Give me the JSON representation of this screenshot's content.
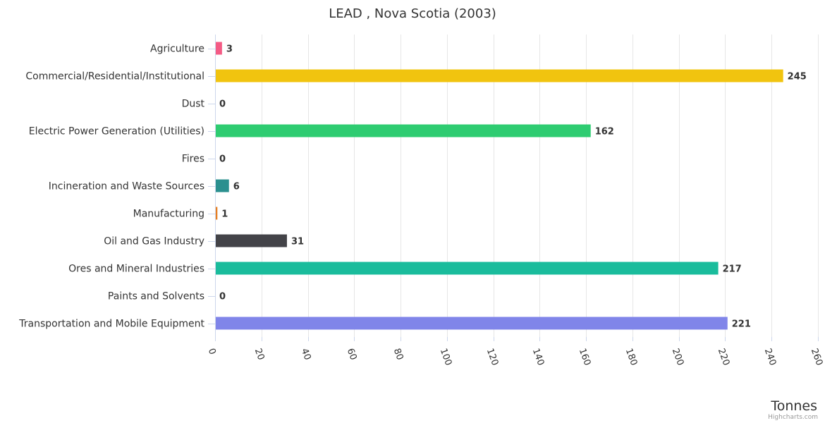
{
  "chart_data": {
    "type": "bar",
    "orientation": "horizontal",
    "title": "LEAD , Nova Scotia (2003)",
    "xlabel": "",
    "ylabel": "Tonnes",
    "categories": [
      "Agriculture",
      "Commercial/Residential/Institutional",
      "Dust",
      "Electric Power Generation (Utilities)",
      "Fires",
      "Incineration and Waste Sources",
      "Manufacturing",
      "Oil and Gas Industry",
      "Ores and Mineral Industries",
      "Paints and Solvents",
      "Transportation and Mobile Equipment"
    ],
    "values": [
      3,
      245,
      0,
      162,
      0,
      6,
      1,
      31,
      217,
      0,
      221
    ],
    "data_labels": [
      "3",
      "245",
      "0",
      "162",
      "0",
      "6",
      "1",
      "31",
      "217",
      "0",
      "221"
    ],
    "colors": [
      "#f45b85",
      "#f1c40f",
      "#2f7ed8",
      "#2ecc71",
      "#8e44ad",
      "#2b908f",
      "#e67e22",
      "#434348",
      "#1abc9c",
      "#9b59b6",
      "#8085e9"
    ],
    "value_axis": {
      "min": 0,
      "max": 260,
      "tick_interval": 20,
      "ticks": [
        "0",
        "20",
        "40",
        "60",
        "80",
        "100",
        "120",
        "140",
        "160",
        "180",
        "200",
        "220",
        "240",
        "260"
      ],
      "title": "Tonnes"
    },
    "grid": true,
    "legend": "none"
  },
  "credits": "Highcharts.com"
}
